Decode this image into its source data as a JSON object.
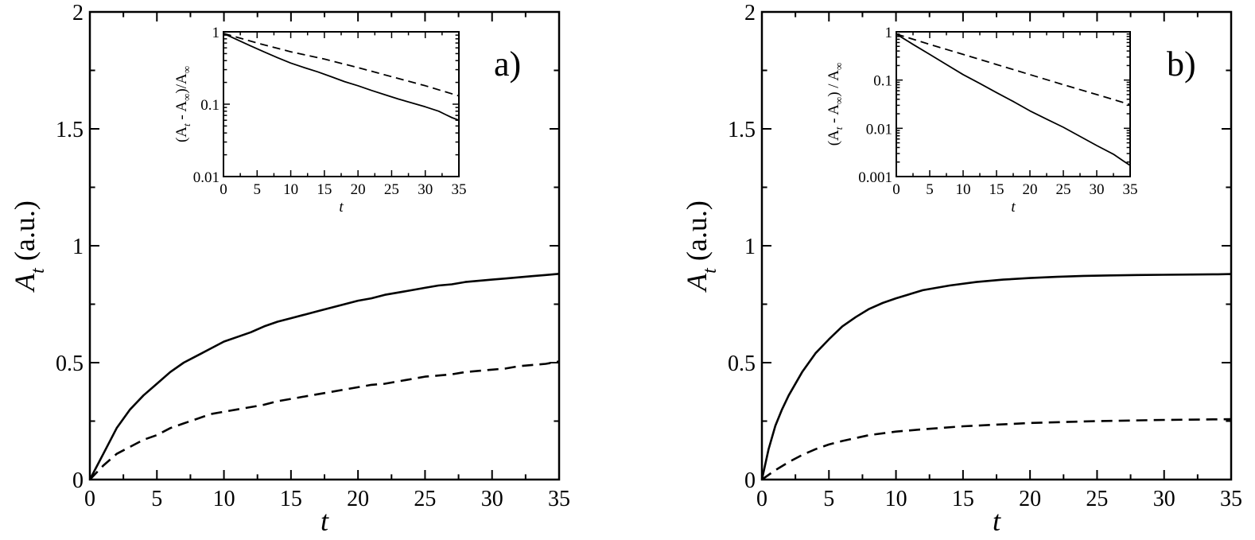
{
  "chart_data": [
    {
      "type": "line",
      "panel_label": "a)",
      "xlabel": "t",
      "ylabel": {
        "base": "A",
        "sub": "t",
        "rest": " (a.u.)"
      },
      "xlim": [
        0,
        35
      ],
      "ylim": [
        0,
        2
      ],
      "xticks": [
        0,
        5,
        10,
        15,
        20,
        25,
        30,
        35
      ],
      "yticks": [
        0,
        0.5,
        1,
        1.5,
        2
      ],
      "ytick_labels": [
        "0",
        "0.5",
        "1",
        "1.5",
        "2"
      ],
      "series": [
        {
          "name": "solid",
          "style": "solid",
          "x": [
            0,
            1,
            2,
            3,
            4,
            5,
            6,
            7,
            8,
            9,
            10,
            11,
            12,
            13,
            14,
            15,
            16,
            17,
            18,
            19,
            20,
            21,
            22,
            23,
            24,
            25,
            26,
            27,
            28,
            29,
            30,
            31,
            32,
            33,
            34,
            35
          ],
          "y": [
            0,
            0.11,
            0.22,
            0.3,
            0.36,
            0.41,
            0.46,
            0.5,
            0.53,
            0.56,
            0.59,
            0.61,
            0.63,
            0.655,
            0.675,
            0.69,
            0.705,
            0.72,
            0.735,
            0.75,
            0.765,
            0.775,
            0.79,
            0.8,
            0.81,
            0.82,
            0.83,
            0.835,
            0.845,
            0.85,
            0.855,
            0.86,
            0.865,
            0.87,
            0.875,
            0.88
          ]
        },
        {
          "name": "dashed",
          "style": "dashed",
          "x": [
            0,
            1,
            2,
            3,
            4,
            5,
            6,
            7,
            8,
            9,
            10,
            11,
            12,
            13,
            14,
            15,
            16,
            17,
            18,
            19,
            20,
            21,
            22,
            23,
            24,
            25,
            26,
            27,
            28,
            29,
            30,
            31,
            32,
            33,
            34,
            35
          ],
          "y": [
            0,
            0.06,
            0.11,
            0.14,
            0.17,
            0.19,
            0.22,
            0.24,
            0.26,
            0.28,
            0.29,
            0.3,
            0.31,
            0.32,
            0.335,
            0.345,
            0.355,
            0.365,
            0.375,
            0.385,
            0.395,
            0.405,
            0.41,
            0.42,
            0.43,
            0.44,
            0.445,
            0.45,
            0.46,
            0.465,
            0.47,
            0.475,
            0.485,
            0.49,
            0.495,
            0.505
          ]
        }
      ],
      "inset": {
        "type": "line",
        "yscale": "log",
        "xlabel": "t",
        "ylabel": "(A_t - A_∞)/A_∞",
        "ylabel_parts": {
          "open": "(A",
          "sub1": "t",
          "mid": " - A",
          "sub2": "∞",
          "close": ")/A",
          "sub3": "∞"
        },
        "xlim": [
          0,
          35
        ],
        "ylim": [
          0.01,
          1
        ],
        "xticks": [
          0,
          5,
          10,
          15,
          20,
          25,
          30,
          35
        ],
        "yticks": [
          0.01,
          0.1,
          1
        ],
        "ytick_labels": [
          "0.01",
          "0.1",
          "1"
        ],
        "series": [
          {
            "name": "solid",
            "style": "solid",
            "x": [
              0,
              2,
              4,
              6,
              8,
              10,
              12,
              14,
              16,
              18,
              20,
              22,
              24,
              26,
              28,
              30,
              32,
              33,
              34,
              35
            ],
            "y": [
              0.95,
              0.78,
              0.64,
              0.53,
              0.44,
              0.37,
              0.32,
              0.28,
              0.24,
              0.205,
              0.18,
              0.155,
              0.135,
              0.118,
              0.104,
              0.092,
              0.08,
              0.072,
              0.065,
              0.06
            ]
          },
          {
            "name": "dashed",
            "style": "dashed",
            "x": [
              0,
              5,
              10,
              15,
              20,
              25,
              30,
              35
            ],
            "y": [
              0.95,
              0.7,
              0.53,
              0.42,
              0.32,
              0.24,
              0.18,
              0.13
            ]
          }
        ]
      }
    },
    {
      "type": "line",
      "panel_label": "b)",
      "xlabel": "t",
      "ylabel": {
        "base": "A",
        "sub": "t",
        "rest": " (a.u.)"
      },
      "xlim": [
        0,
        35
      ],
      "ylim": [
        0,
        2
      ],
      "xticks": [
        0,
        5,
        10,
        15,
        20,
        25,
        30,
        35
      ],
      "yticks": [
        0,
        0.5,
        1,
        1.5,
        2
      ],
      "ytick_labels": [
        "0",
        "0.5",
        "1",
        "1.5",
        "2"
      ],
      "series": [
        {
          "name": "solid",
          "style": "solid",
          "x": [
            0,
            0.5,
            1,
            1.5,
            2,
            3,
            4,
            5,
            6,
            7,
            8,
            9,
            10,
            12,
            14,
            16,
            18,
            20,
            22,
            24,
            26,
            28,
            30,
            32,
            34,
            35
          ],
          "y": [
            0,
            0.13,
            0.23,
            0.3,
            0.36,
            0.46,
            0.54,
            0.6,
            0.655,
            0.695,
            0.73,
            0.755,
            0.775,
            0.81,
            0.83,
            0.845,
            0.855,
            0.862,
            0.867,
            0.871,
            0.873,
            0.875,
            0.876,
            0.877,
            0.878,
            0.879
          ]
        },
        {
          "name": "dashed",
          "style": "dashed",
          "x": [
            0,
            1,
            2,
            3,
            4,
            5,
            6,
            8,
            10,
            12,
            15,
            20,
            25,
            30,
            35
          ],
          "y": [
            0,
            0.04,
            0.075,
            0.105,
            0.13,
            0.15,
            0.165,
            0.19,
            0.205,
            0.215,
            0.228,
            0.242,
            0.25,
            0.255,
            0.258
          ]
        }
      ],
      "inset": {
        "type": "line",
        "yscale": "log",
        "xlabel": "t",
        "ylabel": "(A_t - A_∞) / A_∞",
        "ylabel_parts": {
          "open": "(A",
          "sub1": "t",
          "mid": " - A",
          "sub2": "∞",
          "close": ") / A",
          "sub3": "∞"
        },
        "xlim": [
          0,
          35
        ],
        "ylim": [
          0.001,
          1
        ],
        "xticks": [
          0,
          5,
          10,
          15,
          20,
          25,
          30,
          35
        ],
        "yticks": [
          0.001,
          0.01,
          0.1,
          1
        ],
        "ytick_labels": [
          "0.001",
          "0.01",
          "0.1",
          "1"
        ],
        "series": [
          {
            "name": "solid",
            "style": "solid",
            "x": [
              0,
              2.5,
              5,
              7.5,
              10,
              12.5,
              15,
              17.5,
              20,
              22.5,
              25,
              27.5,
              30,
              32.5,
              34,
              35
            ],
            "y": [
              0.9,
              0.55,
              0.34,
              0.21,
              0.13,
              0.085,
              0.055,
              0.036,
              0.023,
              0.0155,
              0.0105,
              0.0068,
              0.0044,
              0.0029,
              0.0021,
              0.0017
            ]
          },
          {
            "name": "dashed",
            "style": "dashed",
            "x": [
              0,
              5,
              10,
              15,
              20,
              25,
              30,
              35
            ],
            "y": [
              0.9,
              0.55,
              0.34,
              0.21,
              0.13,
              0.08,
              0.05,
              0.031
            ]
          }
        ]
      }
    }
  ]
}
